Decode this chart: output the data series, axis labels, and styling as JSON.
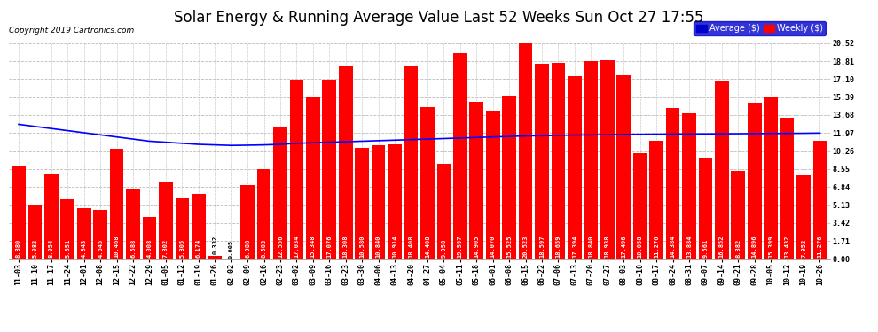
{
  "title": "Solar Energy & Running Average Value Last 52 Weeks Sun Oct 27 17:55",
  "copyright": "Copyright 2019 Cartronics.com",
  "ylabel_right": [
    "0.00",
    "1.71",
    "3.42",
    "5.13",
    "6.84",
    "8.55",
    "10.26",
    "11.97",
    "13.68",
    "15.39",
    "17.10",
    "18.81",
    "20.52"
  ],
  "yvalues": [
    0.0,
    1.71,
    3.42,
    5.13,
    6.84,
    8.55,
    10.26,
    11.97,
    13.68,
    15.39,
    17.1,
    18.81,
    20.52
  ],
  "bar_color": "#ff0000",
  "line_color": "#0000ff",
  "background_color": "#ffffff",
  "grid_color": "#bbbbbb",
  "categories": [
    "11-03",
    "11-10",
    "11-17",
    "11-24",
    "12-01",
    "12-08",
    "12-15",
    "12-22",
    "12-29",
    "01-05",
    "01-12",
    "01-19",
    "01-26",
    "02-02",
    "02-09",
    "02-16",
    "02-23",
    "03-02",
    "03-09",
    "03-16",
    "03-23",
    "03-30",
    "04-06",
    "04-13",
    "04-20",
    "04-27",
    "05-04",
    "05-11",
    "05-18",
    "06-01",
    "06-08",
    "06-15",
    "06-22",
    "07-06",
    "07-13",
    "07-20",
    "07-27",
    "08-03",
    "08-10",
    "08-17",
    "08-24",
    "08-31",
    "09-07",
    "09-14",
    "09-21",
    "09-28",
    "10-05",
    "10-12",
    "10-19",
    "10-26"
  ],
  "bar_values": [
    8.88,
    5.082,
    8.054,
    5.651,
    4.843,
    4.645,
    10.468,
    6.588,
    4.008,
    7.302,
    5.805,
    6.174,
    0.332,
    0.005,
    6.988,
    8.503,
    12.556,
    17.034,
    15.348,
    17.076,
    18.308,
    10.58,
    10.84,
    10.914,
    18.408,
    14.408,
    9.058,
    19.597,
    14.905,
    14.07,
    15.525,
    20.523,
    18.597,
    18.659,
    17.394,
    18.84,
    18.938,
    17.496,
    10.058,
    11.276,
    14.384,
    13.884,
    9.561,
    16.852,
    8.382,
    14.896,
    15.399,
    13.432,
    7.952,
    11.276
  ],
  "avg_values": [
    12.8,
    12.6,
    12.4,
    12.2,
    12.0,
    11.8,
    11.6,
    11.4,
    11.2,
    11.1,
    11.0,
    10.9,
    10.85,
    10.8,
    10.82,
    10.85,
    10.9,
    11.0,
    11.05,
    11.1,
    11.15,
    11.2,
    11.25,
    11.3,
    11.35,
    11.4,
    11.45,
    11.5,
    11.55,
    11.6,
    11.65,
    11.7,
    11.72,
    11.75,
    11.78,
    11.8,
    11.82,
    11.84,
    11.85,
    11.86,
    11.87,
    11.88,
    11.89,
    11.9,
    11.91,
    11.92,
    11.93,
    11.94,
    11.95,
    11.97
  ],
  "title_fontsize": 12,
  "tick_fontsize": 6,
  "value_fontsize": 5,
  "ylim": [
    0,
    20.52
  ]
}
